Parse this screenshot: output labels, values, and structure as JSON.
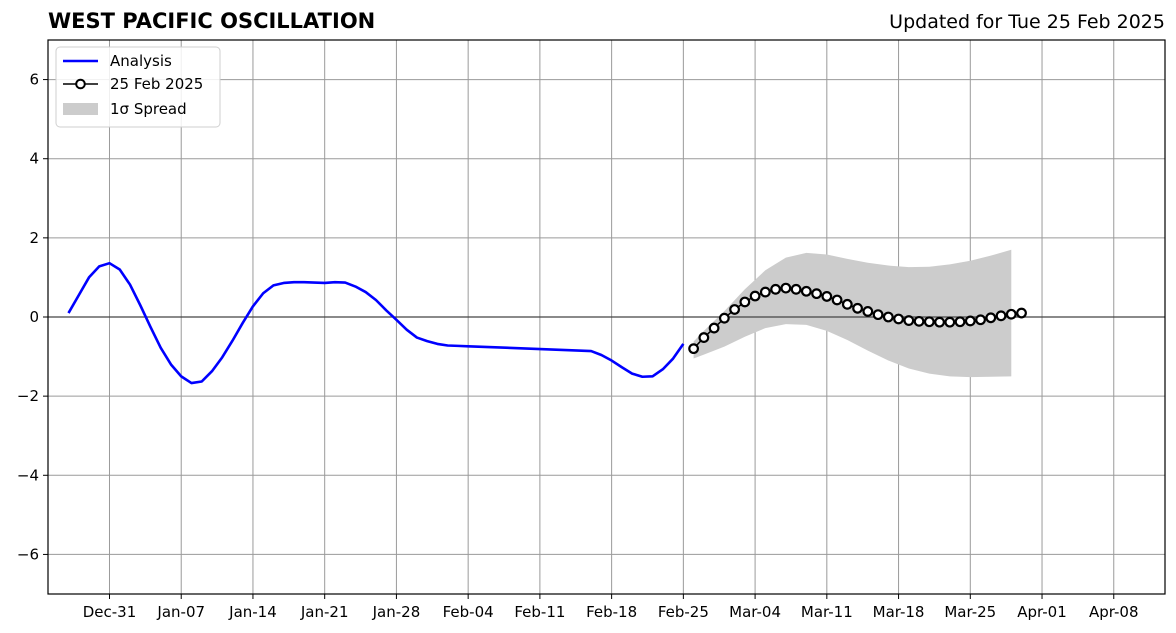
{
  "title": "WEST PACIFIC OSCILLATION",
  "subtitle": "Updated for Tue 25 Feb 2025",
  "chart_data": {
    "type": "line",
    "title": "WEST PACIFIC OSCILLATION",
    "subtitle": "Updated for Tue 25 Feb 2025",
    "x_type": "date",
    "xlim": [
      "2024-12-25",
      "2025-04-13"
    ],
    "ylim": [
      -7,
      7
    ],
    "x_ticks": [
      "2024-12-31",
      "2025-01-07",
      "2025-01-14",
      "2025-01-21",
      "2025-01-28",
      "2025-02-04",
      "2025-02-11",
      "2025-02-18",
      "2025-02-25",
      "2025-03-04",
      "2025-03-11",
      "2025-03-18",
      "2025-03-25",
      "2025-04-01",
      "2025-04-08"
    ],
    "x_tick_labels": [
      "Dec-31",
      "Jan-07",
      "Jan-14",
      "Jan-21",
      "Jan-28",
      "Feb-04",
      "Feb-11",
      "Feb-18",
      "Feb-25",
      "Mar-04",
      "Mar-11",
      "Mar-18",
      "Mar-25",
      "Apr-01",
      "Apr-08"
    ],
    "y_ticks": [
      -6,
      -4,
      -2,
      0,
      2,
      4,
      6
    ],
    "y_tick_labels": [
      "−6",
      "−4",
      "−2",
      "0",
      "2",
      "4",
      "6"
    ],
    "grid": true,
    "zero_line": true,
    "legend_position": "top-left",
    "legend": [
      "Analysis",
      "25 Feb 2025",
      "1σ Spread"
    ],
    "series": [
      {
        "name": "Analysis",
        "type": "line",
        "color": "#0000ff",
        "points": [
          [
            "2024-12-27",
            0.1
          ],
          [
            "2024-12-28",
            0.55
          ],
          [
            "2024-12-29",
            1.0
          ],
          [
            "2024-12-30",
            1.28
          ],
          [
            "2024-12-31",
            1.36
          ],
          [
            "2025-01-01",
            1.2
          ],
          [
            "2025-01-02",
            0.82
          ],
          [
            "2025-01-03",
            0.3
          ],
          [
            "2025-01-04",
            -0.25
          ],
          [
            "2025-01-05",
            -0.78
          ],
          [
            "2025-01-06",
            -1.2
          ],
          [
            "2025-01-07",
            -1.5
          ],
          [
            "2025-01-08",
            -1.67
          ],
          [
            "2025-01-09",
            -1.63
          ],
          [
            "2025-01-10",
            -1.37
          ],
          [
            "2025-01-11",
            -1.02
          ],
          [
            "2025-01-12",
            -0.6
          ],
          [
            "2025-01-13",
            -0.15
          ],
          [
            "2025-01-14",
            0.27
          ],
          [
            "2025-01-15",
            0.6
          ],
          [
            "2025-01-16",
            0.8
          ],
          [
            "2025-01-17",
            0.86
          ],
          [
            "2025-01-18",
            0.88
          ],
          [
            "2025-01-19",
            0.88
          ],
          [
            "2025-01-20",
            0.87
          ],
          [
            "2025-01-21",
            0.86
          ],
          [
            "2025-01-22",
            0.88
          ],
          [
            "2025-01-23",
            0.87
          ],
          [
            "2025-01-24",
            0.77
          ],
          [
            "2025-01-25",
            0.63
          ],
          [
            "2025-01-26",
            0.43
          ],
          [
            "2025-01-27",
            0.17
          ],
          [
            "2025-01-28",
            -0.07
          ],
          [
            "2025-01-29",
            -0.32
          ],
          [
            "2025-01-30",
            -0.52
          ],
          [
            "2025-01-31",
            -0.61
          ],
          [
            "2025-02-01",
            -0.68
          ],
          [
            "2025-02-02",
            -0.72
          ],
          [
            "2025-02-03",
            -0.73
          ],
          [
            "2025-02-04",
            -0.74
          ],
          [
            "2025-02-16",
            -0.86
          ],
          [
            "2025-02-17",
            -0.96
          ],
          [
            "2025-02-18",
            -1.1
          ],
          [
            "2025-02-19",
            -1.27
          ],
          [
            "2025-02-20",
            -1.43
          ],
          [
            "2025-02-21",
            -1.51
          ],
          [
            "2025-02-22",
            -1.5
          ],
          [
            "2025-02-23",
            -1.32
          ],
          [
            "2025-02-24",
            -1.05
          ],
          [
            "2025-02-25",
            -0.68
          ]
        ]
      },
      {
        "name": "25 Feb 2025",
        "type": "line-markers",
        "color": "#000000",
        "start": "2025-02-26",
        "values": [
          -0.8,
          -0.52,
          -0.28,
          -0.03,
          0.19,
          0.38,
          0.53,
          0.63,
          0.7,
          0.73,
          0.7,
          0.65,
          0.59,
          0.52,
          0.43,
          0.32,
          0.22,
          0.14,
          0.06,
          0.0,
          -0.05,
          -0.09,
          -0.11,
          -0.12,
          -0.13,
          -0.13,
          -0.12,
          -0.1,
          -0.07,
          -0.02,
          0.03,
          0.07,
          0.1
        ]
      },
      {
        "name": "1σ Spread",
        "type": "band",
        "color": "#cccccc",
        "points": [
          [
            "2025-02-26",
            -1.05,
            -0.62
          ],
          [
            "2025-02-27",
            -0.95,
            -0.35
          ],
          [
            "2025-03-01",
            -0.75,
            0.15
          ],
          [
            "2025-03-03",
            -0.5,
            0.7
          ],
          [
            "2025-03-05",
            -0.28,
            1.18
          ],
          [
            "2025-03-07",
            -0.18,
            1.5
          ],
          [
            "2025-03-09",
            -0.2,
            1.62
          ],
          [
            "2025-03-11",
            -0.35,
            1.58
          ],
          [
            "2025-03-13",
            -0.58,
            1.47
          ],
          [
            "2025-03-15",
            -0.85,
            1.37
          ],
          [
            "2025-03-17",
            -1.1,
            1.3
          ],
          [
            "2025-03-19",
            -1.3,
            1.26
          ],
          [
            "2025-03-21",
            -1.43,
            1.27
          ],
          [
            "2025-03-23",
            -1.5,
            1.33
          ],
          [
            "2025-03-25",
            -1.52,
            1.42
          ],
          [
            "2025-03-27",
            -1.51,
            1.55
          ],
          [
            "2025-03-29",
            -1.5,
            1.7
          ]
        ]
      }
    ]
  }
}
